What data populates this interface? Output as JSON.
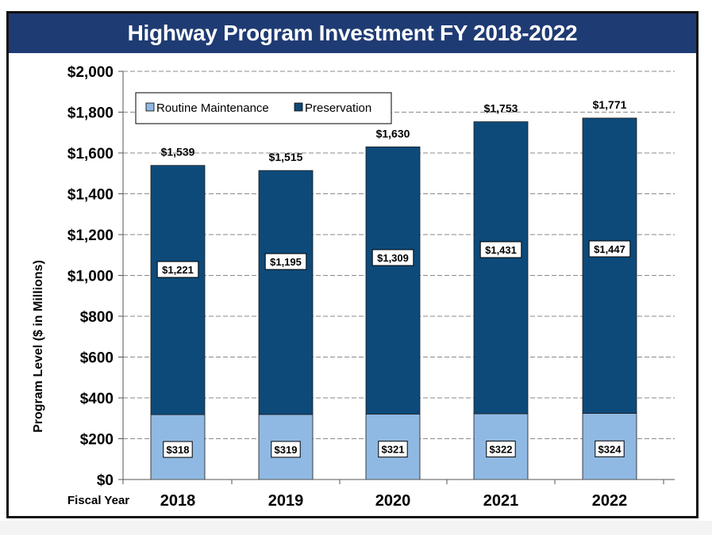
{
  "chart_data": {
    "type": "bar",
    "stacked": true,
    "title": "Highway Program Investment FY 2018-2022",
    "xlabel": "Fiscal Year",
    "ylabel": "Program Level ($ in Millions)",
    "categories": [
      "2018",
      "2019",
      "2020",
      "2021",
      "2022"
    ],
    "series": [
      {
        "name": "Routine Maintenance",
        "color": "#8fb9e3",
        "values": [
          318,
          319,
          321,
          322,
          324
        ],
        "labels": [
          "$318",
          "$319",
          "$321",
          "$322",
          "$324"
        ]
      },
      {
        "name": "Preservation",
        "color": "#0d4a7a",
        "values": [
          1221,
          1195,
          1309,
          1431,
          1447
        ],
        "labels": [
          "$1,221",
          "$1,195",
          "$1,309",
          "$1,431",
          "$1,447"
        ]
      }
    ],
    "totals": [
      1539,
      1515,
      1630,
      1753,
      1771
    ],
    "total_labels": [
      "$1,539",
      "$1,515",
      "$1,630",
      "$1,753",
      "$1,771"
    ],
    "ylim": [
      0,
      2000
    ],
    "yticks": [
      0,
      200,
      400,
      600,
      800,
      1000,
      1200,
      1400,
      1600,
      1800,
      2000
    ],
    "ytick_labels": [
      "$0",
      "$200",
      "$400",
      "$600",
      "$800",
      "$1,000",
      "$1,200",
      "$1,400",
      "$1,600",
      "$1,800",
      "$2,000"
    ],
    "grid": true,
    "legend_position": "top-left"
  }
}
